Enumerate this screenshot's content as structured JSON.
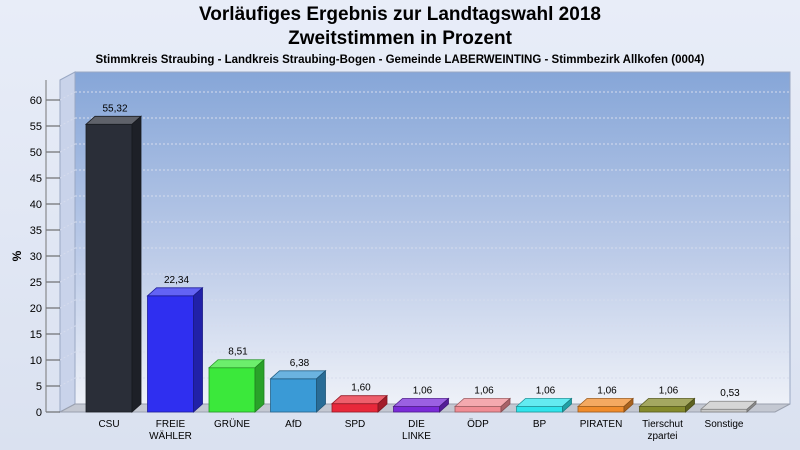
{
  "chart_data": {
    "type": "bar",
    "title": "Vorläufiges Ergebnis zur Landtagswahl 2018",
    "subtitle_line1": "Zweitstimmen in Prozent",
    "subtitle_line2": "Stimmkreis Straubing - Landkreis Straubing-Bogen - Gemeinde LABERWEINTING - Stimmbezirk Allkofen (0004)",
    "ylabel": "%",
    "ylim": [
      0,
      60
    ],
    "yticks": [
      "0",
      "5",
      "10",
      "15",
      "20",
      "25",
      "30",
      "35",
      "40",
      "45",
      "50",
      "55",
      "60"
    ],
    "grid": true,
    "categories": [
      [
        "CSU"
      ],
      [
        "FREIE",
        "WÄHLER"
      ],
      [
        "GRÜNE"
      ],
      [
        "AfD"
      ],
      [
        "SPD"
      ],
      [
        "DIE",
        "LINKE"
      ],
      [
        "ÖDP"
      ],
      [
        "BP"
      ],
      [
        "PIRATEN"
      ],
      [
        "Tierschut",
        "zpartei"
      ],
      [
        "Sonstige"
      ]
    ],
    "values": [
      55.32,
      22.34,
      8.51,
      6.38,
      1.6,
      1.06,
      1.06,
      1.06,
      1.06,
      1.06,
      0.53
    ],
    "value_labels": [
      "55,32",
      "22,34",
      "8,51",
      "6,38",
      "1,60",
      "1,06",
      "1,06",
      "1,06",
      "1,06",
      "1,06",
      "0,53"
    ],
    "colors": [
      "#2a2e38",
      "#2f2ff0",
      "#3be83b",
      "#3a9ad6",
      "#e8283a",
      "#7a2bd8",
      "#f08c94",
      "#2fe4ec",
      "#f08c2c",
      "#858a2c",
      "#c8c8c8"
    ]
  }
}
